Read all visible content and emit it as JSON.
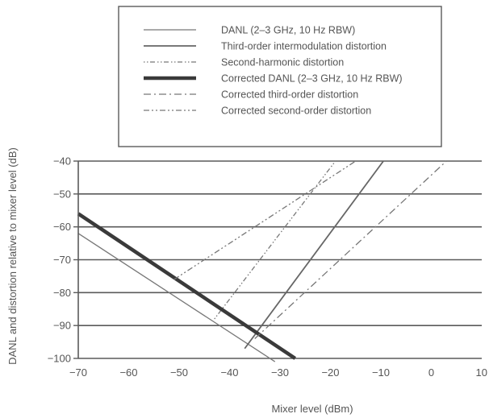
{
  "chart_data": {
    "type": "line",
    "xlabel": "Mixer level (dBm)",
    "ylabel": "DANL and distortion relative to mixer level (dB)",
    "xlim": [
      -70,
      10
    ],
    "ylim": [
      -100,
      -40
    ],
    "xticks": [
      -70,
      -60,
      -50,
      -40,
      -30,
      -20,
      -10,
      0,
      10
    ],
    "yticks": [
      -40,
      -50,
      -60,
      -70,
      -80,
      -90,
      -100
    ],
    "xtick_labels": [
      "−70",
      "−60",
      "−50",
      "−40",
      "−30",
      "−20",
      "−10",
      "0",
      "10"
    ],
    "ytick_labels": [
      "−40",
      "−50",
      "−60",
      "−70",
      "−80",
      "−90",
      "−100"
    ],
    "grid": "horizontal",
    "legend_position": "top",
    "series": [
      {
        "name": "DANL (2–3 GHz, 10 Hz RBW)",
        "style": "solid-thin",
        "color": "#777777",
        "points": [
          [
            -70,
            -62
          ],
          [
            -31,
            -101
          ]
        ]
      },
      {
        "name": "Third-order intermodulation distortion",
        "style": "solid-medium",
        "color": "#666666",
        "points": [
          [
            -37,
            -97
          ],
          [
            -9.5,
            -40
          ]
        ]
      },
      {
        "name": "Second-harmonic distortion",
        "style": "dot-dash",
        "color": "#777777",
        "points": [
          [
            -43,
            -88
          ],
          [
            -19,
            -40
          ]
        ]
      },
      {
        "name": "Corrected DANL (2–3 GHz, 10 Hz RBW)",
        "style": "solid-thick",
        "color": "#3a3a3a",
        "points": [
          [
            -70,
            -56
          ],
          [
            -27,
            -100
          ]
        ]
      },
      {
        "name": "Corrected third-order distortion",
        "style": "dash-dot",
        "color": "#777777",
        "points": [
          [
            -35,
            -94
          ],
          [
            3,
            -40
          ]
        ]
      },
      {
        "name": "Corrected second-order distortion",
        "style": "dash-dot-dot",
        "color": "#777777",
        "points": [
          [
            -51,
            -76
          ],
          [
            -15,
            -40
          ]
        ]
      }
    ]
  }
}
